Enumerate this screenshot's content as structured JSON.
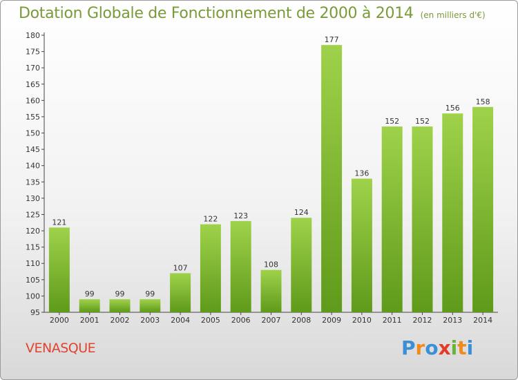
{
  "chart_data": {
    "type": "bar",
    "title": "Dotation Globale de Fonctionnement de 2000 à 2014",
    "unit_note": "(en milliers d'€)",
    "categories": [
      "2000",
      "2001",
      "2002",
      "2003",
      "2004",
      "2005",
      "2006",
      "2007",
      "2008",
      "2009",
      "2010",
      "2011",
      "2012",
      "2013",
      "2014"
    ],
    "values": [
      121,
      99,
      99,
      99,
      107,
      122,
      123,
      108,
      124,
      177,
      136,
      152,
      152,
      156,
      158
    ],
    "ylim": [
      95,
      180
    ],
    "yticks": [
      95,
      100,
      105,
      110,
      115,
      120,
      125,
      130,
      135,
      140,
      145,
      150,
      155,
      160,
      165,
      170,
      175,
      180
    ],
    "grid": false,
    "colors": {
      "bar_light": "#9fd24a",
      "bar_dark": "#5f9a1a",
      "title": "#7a9a3a"
    }
  },
  "footer": {
    "commune": "VENASQUE",
    "logo": {
      "p": "P",
      "r": "r",
      "o": "o",
      "x": "x",
      "i1": "i",
      "t": "t",
      "i2": "i"
    }
  }
}
